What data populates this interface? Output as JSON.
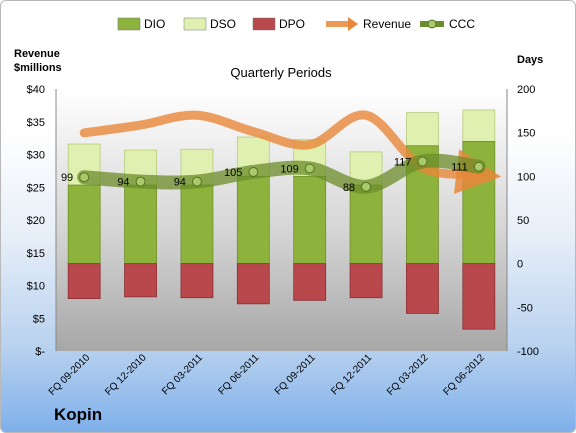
{
  "company": "Kopin",
  "chart_data": {
    "type": "bar",
    "title": "Quarterly Periods",
    "categories": [
      "FQ 09-2010",
      "FQ 12-2010",
      "FQ 03-2011",
      "FQ 06-2011",
      "FQ 09-2011",
      "FQ 12-2011",
      "FQ 03-2012",
      "FQ 06-2012"
    ],
    "legend": [
      "DIO",
      "DSO",
      "DPO",
      "Revenue",
      "CCC"
    ],
    "legend_position": "top",
    "left_axis": {
      "label_line1": "Revenue",
      "label_line2": "$millions",
      "ylim": [
        0,
        40
      ],
      "ticks": [
        0,
        5,
        10,
        15,
        20,
        25,
        30,
        35,
        40
      ],
      "tick_labels": [
        "$-",
        "$5",
        "$10",
        "$15",
        "$20",
        "$25",
        "$30",
        "$35",
        "$40"
      ]
    },
    "right_axis": {
      "label": "Days",
      "ylim": [
        -100,
        200
      ],
      "ticks": [
        -100,
        -50,
        0,
        50,
        100,
        150,
        200
      ],
      "tick_labels": [
        "-100",
        "-50",
        "0",
        "50",
        "100",
        "150",
        "200"
      ]
    },
    "series": [
      {
        "name": "DIO",
        "axis": "right",
        "kind": "stacked-bar",
        "color": "#8db33c",
        "values": [
          90,
          90,
          90,
          100,
          100,
          90,
          135,
          140
        ]
      },
      {
        "name": "DSO",
        "axis": "right",
        "kind": "stacked-bar",
        "color": "#dff0b0",
        "values": [
          47,
          40,
          41,
          45,
          42,
          38,
          38,
          36
        ]
      },
      {
        "name": "DPO",
        "axis": "right",
        "kind": "negative-bar",
        "color": "#b8484b",
        "values": [
          -40,
          -38,
          -39,
          -46,
          -42,
          -39,
          -57,
          -75
        ]
      },
      {
        "name": "Revenue",
        "axis": "left",
        "kind": "line",
        "color": "#e8873a",
        "values": [
          33.3,
          34.5,
          36.0,
          33.5,
          31.5,
          36.0,
          28.0,
          27.0
        ]
      },
      {
        "name": "CCC",
        "axis": "right",
        "kind": "line",
        "color": "#6b8c2a",
        "values": [
          99,
          94,
          94,
          105,
          109,
          88,
          117,
          111
        ],
        "labels": [
          "99",
          "94",
          "94",
          "105",
          "109",
          "88",
          "117",
          "111"
        ]
      }
    ]
  }
}
